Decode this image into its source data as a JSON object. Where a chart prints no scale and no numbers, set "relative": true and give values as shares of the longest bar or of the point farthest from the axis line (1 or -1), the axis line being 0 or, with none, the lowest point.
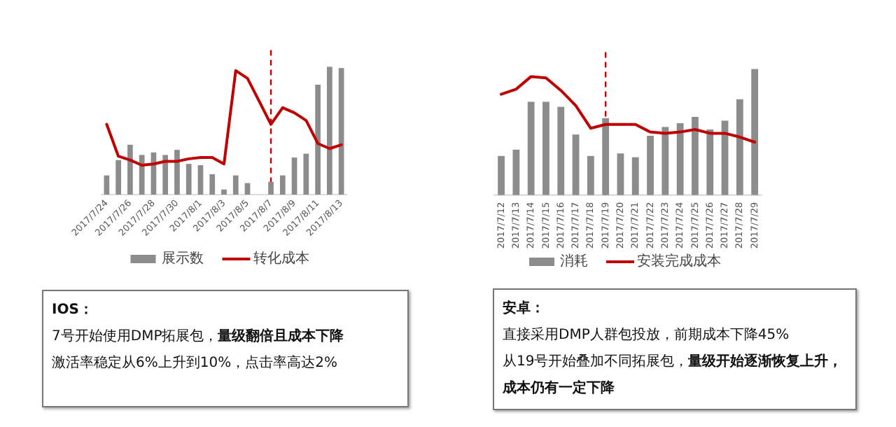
{
  "chart_data": [
    {
      "type": "bar",
      "relative": true,
      "legend": "bottom",
      "marker": "none",
      "categories": [
        "2017/7/24",
        null,
        "2017/7/26",
        null,
        "2017/7/28",
        null,
        "2017/7/30",
        null,
        "2017/8/1",
        null,
        "2017/8/3",
        null,
        "2017/8/5",
        null,
        "2017/8/7",
        null,
        "2017/8/9",
        null,
        "2017/8/11",
        null,
        "2017/8/13"
      ],
      "series": [
        {
          "name": "展示数",
          "type": "bar",
          "color": "#8c8c8c",
          "values": [
            0.15,
            0.27,
            0.39,
            0.31,
            0.33,
            0.31,
            0.35,
            0.24,
            0.23,
            0.16,
            0.04,
            0.15,
            0.09,
            null,
            0.1,
            0.15,
            0.29,
            0.32,
            0.86,
            1,
            0.99
          ]
        },
        {
          "name": "转化成本",
          "type": "line",
          "color": "#c00000",
          "values": [
            0.55,
            0.3,
            0.27,
            0.23,
            0.24,
            0.26,
            0.26,
            0.28,
            0.29,
            0.29,
            0.24,
            0.97,
            0.91,
            0.73,
            0.55,
            0.68,
            0.64,
            0.58,
            0.4,
            0.36,
            0.39
          ]
        }
      ],
      "ref_lines": [
        {
          "axis": "x",
          "value": "2017/8/7",
          "color": "#c00000",
          "line_style": "dashed"
        }
      ]
    },
    {
      "type": "bar",
      "relative": true,
      "legend": "bottom",
      "marker": "none",
      "categories": [
        "2017/7/12",
        "2017/7/13",
        "2017/7/14",
        "2017/7/15",
        "2017/7/16",
        "2017/7/17",
        "2017/7/18",
        "2017/7/19",
        "2017/7/20",
        "2017/7/21",
        "2017/7/22",
        "2017/7/23",
        "2017/7/24",
        "2017/7/25",
        "2017/7/26",
        "2017/7/27",
        "2017/7/28",
        "2017/7/29"
      ],
      "series": [
        {
          "name": "消耗",
          "type": "bar",
          "color": "#8c8c8c",
          "values": [
            0.31,
            0.36,
            0.74,
            0.74,
            0.7,
            0.48,
            0.31,
            0.61,
            0.33,
            0.3,
            0.47,
            0.54,
            0.57,
            0.62,
            0.52,
            0.59,
            0.76,
            1
          ]
        },
        {
          "name": "安装完成成本",
          "type": "line",
          "color": "#c00000",
          "values": [
            0.8,
            0.84,
            0.94,
            0.93,
            0.83,
            0.71,
            0.53,
            0.56,
            0.56,
            0.56,
            0.5,
            0.49,
            0.5,
            0.52,
            0.49,
            0.49,
            0.46,
            0.42
          ]
        }
      ],
      "ref_lines": [
        {
          "axis": "x",
          "value": "2017/7/19",
          "color": "#c00000",
          "line_style": "dashed"
        }
      ]
    },
    {
      "type": "other",
      "title": "IOS：",
      "annotations": [
        "7号开始使用DMP拓展包，**量级翻倍且成本下降**",
        "激活率稳定从6%上升到10%，点击率高达2%"
      ]
    },
    {
      "type": "other",
      "title": "安卓：",
      "annotations": [
        "直接采用DMP人群包投放，前期成本下降45%",
        "从19号开始叠加不同拓展包，**量级开始逐渐恢复上升，成本仍有一定下降**"
      ]
    }
  ]
}
